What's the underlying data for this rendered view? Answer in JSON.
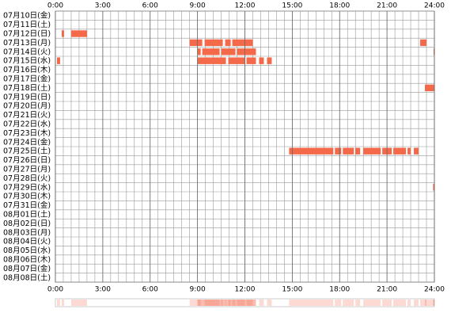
{
  "chart_data": {
    "type": "timeline",
    "color": "#f4694a",
    "xlim": [
      0,
      24
    ],
    "xticks": [
      {
        "value": 0,
        "label": "0:00"
      },
      {
        "value": 3,
        "label": "3:00"
      },
      {
        "value": 6,
        "label": "6:00"
      },
      {
        "value": 9,
        "label": "9:00"
      },
      {
        "value": 12,
        "label": "12:00"
      },
      {
        "value": 15,
        "label": "15:00"
      },
      {
        "value": 18,
        "label": "18:00"
      },
      {
        "value": 21,
        "label": "21:00"
      },
      {
        "value": 24,
        "label": "24:00"
      }
    ],
    "rows": [
      {
        "label": "07月10日(金)",
        "spans": []
      },
      {
        "label": "07月11日(土)",
        "spans": []
      },
      {
        "label": "07月12日(日)",
        "spans": [
          [
            0.4,
            0.55
          ],
          [
            1.0,
            2.0
          ]
        ]
      },
      {
        "label": "07月13日(月)",
        "spans": [
          [
            8.5,
            9.3
          ],
          [
            9.45,
            10.6
          ],
          [
            10.75,
            11.1
          ],
          [
            11.2,
            12.5
          ],
          [
            23.1,
            23.5
          ]
        ]
      },
      {
        "label": "07月14日(火)",
        "spans": [
          [
            9.0,
            9.2
          ],
          [
            9.3,
            10.4
          ],
          [
            10.5,
            11.4
          ],
          [
            11.5,
            12.7
          ],
          [
            23.95,
            24.0
          ]
        ]
      },
      {
        "label": "07月15日(水)",
        "spans": [
          [
            0.1,
            0.3
          ],
          [
            9.0,
            10.8
          ],
          [
            10.95,
            12.0
          ],
          [
            12.1,
            12.7
          ],
          [
            12.9,
            13.2
          ],
          [
            13.4,
            13.7
          ]
        ]
      },
      {
        "label": "07月16日(木)",
        "spans": []
      },
      {
        "label": "07月17日(金)",
        "spans": []
      },
      {
        "label": "07月18日(土)",
        "spans": [
          [
            23.4,
            24.0
          ]
        ]
      },
      {
        "label": "07月19日(日)",
        "spans": []
      },
      {
        "label": "07月20日(月)",
        "spans": []
      },
      {
        "label": "07月21日(火)",
        "spans": []
      },
      {
        "label": "07月22日(水)",
        "spans": []
      },
      {
        "label": "07月23日(木)",
        "spans": []
      },
      {
        "label": "07月24日(金)",
        "spans": []
      },
      {
        "label": "07月25日(土)",
        "spans": [
          [
            14.8,
            17.6
          ],
          [
            17.7,
            18.1
          ],
          [
            18.2,
            18.9
          ],
          [
            19.0,
            19.3
          ],
          [
            19.5,
            20.6
          ],
          [
            20.7,
            21.3
          ],
          [
            21.4,
            22.2
          ],
          [
            22.3,
            22.5
          ],
          [
            22.7,
            23.0
          ]
        ]
      },
      {
        "label": "07月26日(日)",
        "spans": []
      },
      {
        "label": "07月27日(月)",
        "spans": []
      },
      {
        "label": "07月28日(火)",
        "spans": []
      },
      {
        "label": "07月29日(水)",
        "spans": [
          [
            23.92,
            24.0
          ]
        ]
      },
      {
        "label": "07月30日(木)",
        "spans": []
      },
      {
        "label": "07月31日(金)",
        "spans": []
      },
      {
        "label": "08月01日(土)",
        "spans": []
      },
      {
        "label": "08月02日(日)",
        "spans": []
      },
      {
        "label": "08月03日(月)",
        "spans": []
      },
      {
        "label": "08月04日(火)",
        "spans": []
      },
      {
        "label": "08月05日(水)",
        "spans": []
      },
      {
        "label": "08月06日(木)",
        "spans": []
      },
      {
        "label": "08月07日(金)",
        "spans": []
      },
      {
        "label": "08月08日(土)",
        "spans": []
      }
    ]
  }
}
